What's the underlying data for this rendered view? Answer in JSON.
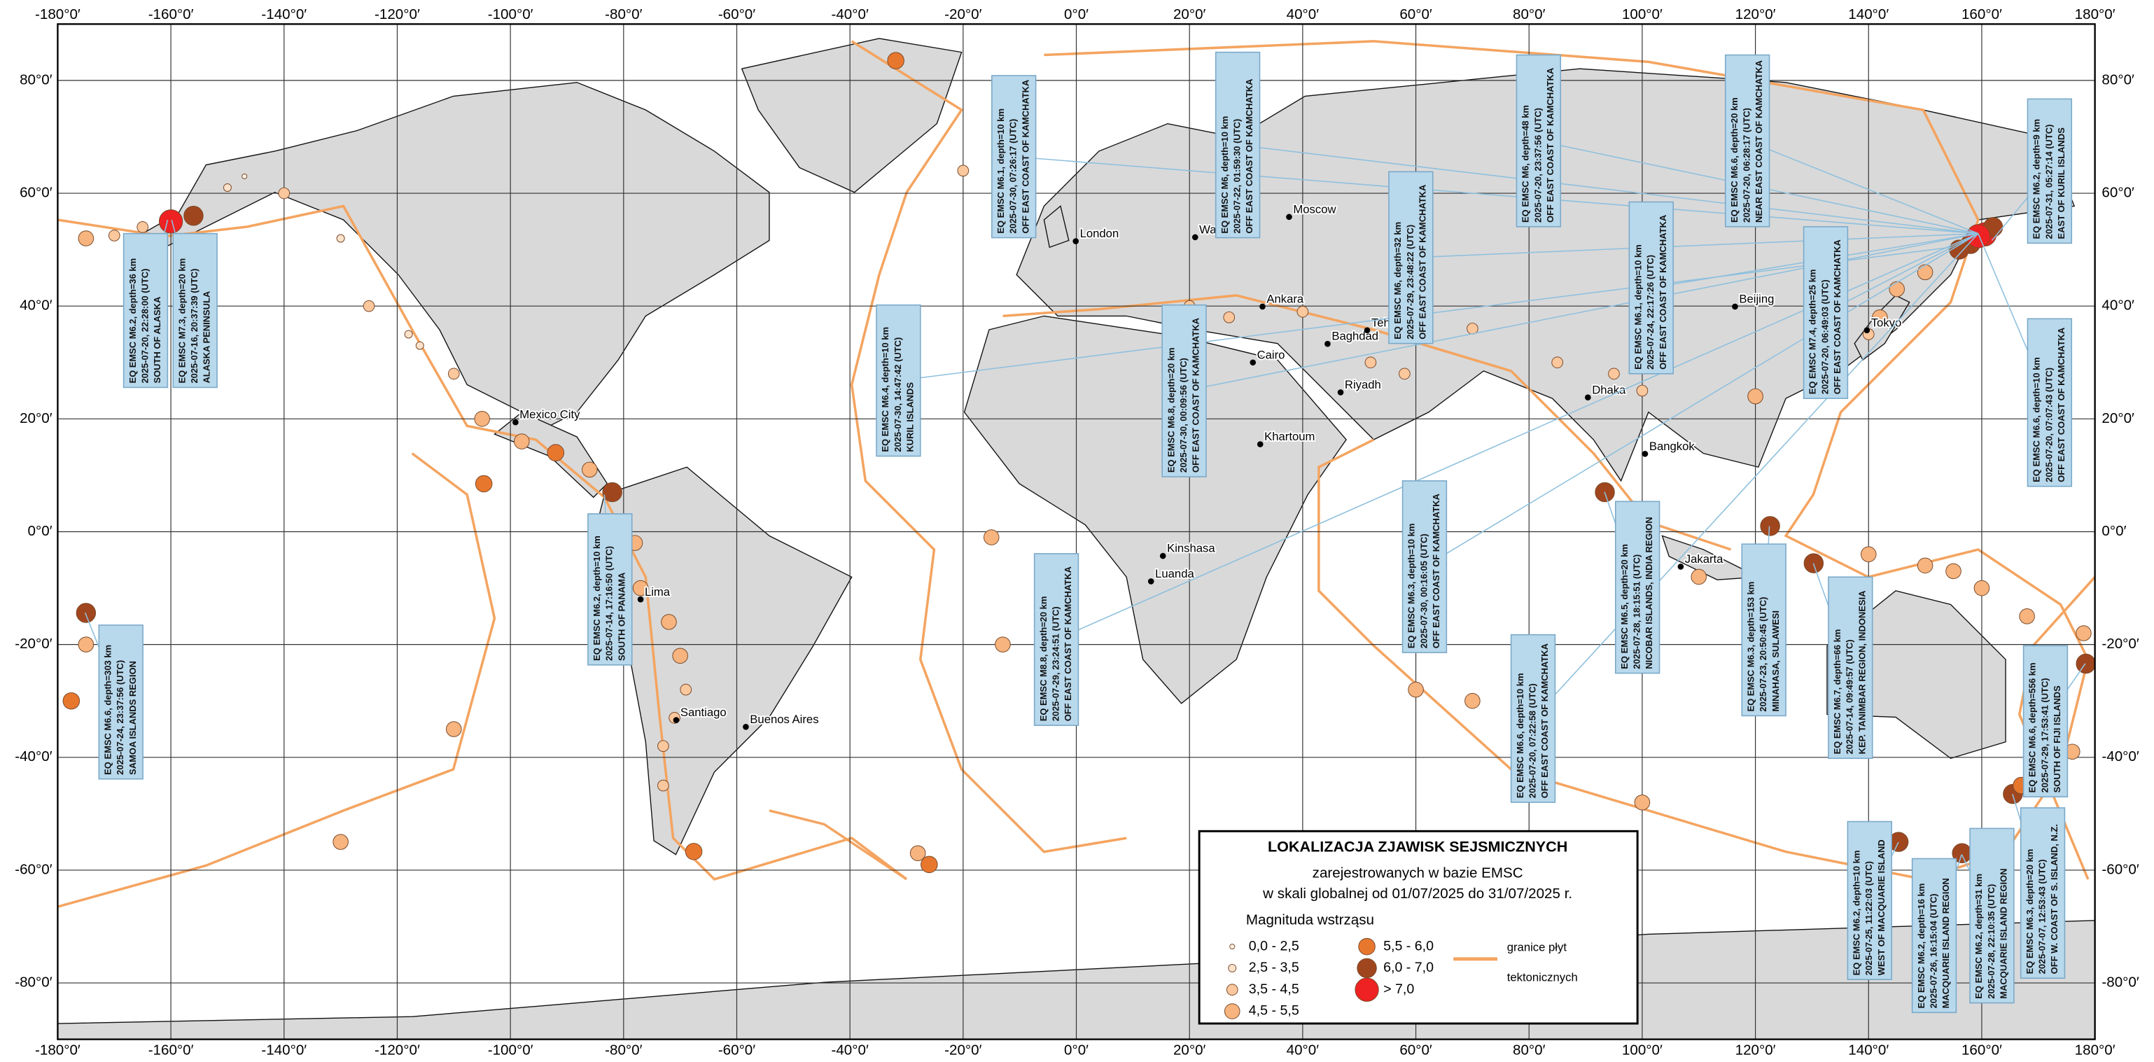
{
  "map": {
    "xticks": [
      {
        "value": -180,
        "label": "-180°0′"
      },
      {
        "value": -160,
        "label": "-160°0′"
      },
      {
        "value": -140,
        "label": "-140°0′"
      },
      {
        "value": -120,
        "label": "-120°0′"
      },
      {
        "value": -100,
        "label": "-100°0′"
      },
      {
        "value": -80,
        "label": "-80°0′"
      },
      {
        "value": -60,
        "label": "-60°0′"
      },
      {
        "value": -40,
        "label": "-40°0′"
      },
      {
        "value": -20,
        "label": "-20°0′"
      },
      {
        "value": 0,
        "label": "0°0′"
      },
      {
        "value": 20,
        "label": "20°0′"
      },
      {
        "value": 40,
        "label": "40°0′"
      },
      {
        "value": 60,
        "label": "60°0′"
      },
      {
        "value": 80,
        "label": "80°0′"
      },
      {
        "value": 100,
        "label": "100°0′"
      },
      {
        "value": 120,
        "label": "120°0′"
      },
      {
        "value": 140,
        "label": "140°0′"
      },
      {
        "value": 160,
        "label": "160°0′"
      },
      {
        "value": 180,
        "label": "180°0′"
      }
    ],
    "yticks": [
      {
        "value": 80,
        "label": "80°0′"
      },
      {
        "value": 60,
        "label": "60°0′"
      },
      {
        "value": 40,
        "label": "40°0′"
      },
      {
        "value": 20,
        "label": "20°0′"
      },
      {
        "value": 0,
        "label": "0°0′"
      },
      {
        "value": -20,
        "label": "-20°0′"
      },
      {
        "value": -40,
        "label": "-40°0′"
      },
      {
        "value": -60,
        "label": "-60°0′"
      },
      {
        "value": -80,
        "label": "-80°0′"
      }
    ]
  },
  "cities": [
    {
      "name": "Moscow",
      "lon": 37.6,
      "lat": 55.8
    },
    {
      "name": "Warsaw",
      "lon": 21,
      "lat": 52.2
    },
    {
      "name": "London",
      "lon": -0.1,
      "lat": 51.5
    },
    {
      "name": "Ankara",
      "lon": 32.9,
      "lat": 39.9
    },
    {
      "name": "Baghdad",
      "lon": 44.4,
      "lat": 33.3
    },
    {
      "name": "Tehran",
      "lon": 51.4,
      "lat": 35.7
    },
    {
      "name": "Cairo",
      "lon": 31.2,
      "lat": 30
    },
    {
      "name": "Riyadh",
      "lon": 46.7,
      "lat": 24.7
    },
    {
      "name": "Khartoum",
      "lon": 32.5,
      "lat": 15.5
    },
    {
      "name": "Kinshasa",
      "lon": 15.3,
      "lat": -4.3
    },
    {
      "name": "Luanda",
      "lon": 13.2,
      "lat": -8.8
    },
    {
      "name": "Beijing",
      "lon": 116.4,
      "lat": 39.9
    },
    {
      "name": "Tokyo",
      "lon": 139.7,
      "lat": 35.7
    },
    {
      "name": "Dhaka",
      "lon": 90.4,
      "lat": 23.8
    },
    {
      "name": "Bangkok",
      "lon": 100.5,
      "lat": 13.8
    },
    {
      "name": "Jakarta",
      "lon": 106.8,
      "lat": -6.2
    },
    {
      "name": "Mexico City",
      "lon": -99.1,
      "lat": 19.4
    },
    {
      "name": "Lima",
      "lon": -77,
      "lat": -12
    },
    {
      "name": "Santiago",
      "lon": -70.7,
      "lat": -33.4
    },
    {
      "name": "Buenos Aires",
      "lon": -58.4,
      "lat": -34.6
    }
  ],
  "callouts": [
    {
      "lines": [
        "EQ EMSC M6.2, depth=36 km",
        "2025-07-20, 22:28:00 (UTC)",
        "SOUTH OF ALASKA"
      ]
    },
    {
      "lines": [
        "EQ EMSC M7.3, depth=20 km",
        "2025-07-16, 20:37:39 (UTC)",
        "ALASKA PENINSULA"
      ]
    },
    {
      "lines": [
        "EQ EMSC M6.4, depth=10 km",
        "2025-07-30, 14:47:42 (UTC)",
        "KURIL ISLANDS"
      ]
    },
    {
      "lines": [
        "EQ EMSC M6.1, depth=10 km",
        "2025-07-30, 07:26:17 (UTC)",
        "OFF EAST COAST OF KAMCHATKA"
      ]
    },
    {
      "lines": [
        "EQ EMSC M6, depth=10 km",
        "2025-07-22, 01:59:30 (UTC)",
        "OFF EAST COAST OF KAMCHATKA"
      ]
    },
    {
      "lines": [
        "EQ EMSC M6.8, depth=20 km",
        "2025-07-30, 00:09:56 (UTC)",
        "OFF EAST COAST OF KAMCHATKA"
      ]
    },
    {
      "lines": [
        "EQ EMSC M6, depth=32 km",
        "2025-07-29, 23:48:22 (UTC)",
        "OFF EAST COAST OF KAMCHATKA"
      ]
    },
    {
      "lines": [
        "EQ EMSC M6, depth=48 km",
        "2025-07-20, 23:37:56 (UTC)",
        "OFF EAST COAST OF KAMCHATKA"
      ]
    },
    {
      "lines": [
        "EQ EMSC M6.1, depth=10 km",
        "2025-07-24, 22:17:26 (UTC)",
        "OFF EAST COAST OF KAMCHATKA"
      ]
    },
    {
      "lines": [
        "EQ EMSC M6.6, depth=20 km",
        "2025-07-20, 06:28:17 (UTC)",
        "NEAR EAST COAST OF KAMCHATKA"
      ]
    },
    {
      "lines": [
        "EQ EMSC M6.2, depth=9 km",
        "2025-07-31, 05:27:14 (UTC)",
        "EAST OF KURIL ISLANDS"
      ]
    },
    {
      "lines": [
        "EQ EMSC M7.4, depth=25 km",
        "2025-07-20, 06:49:03 (UTC)",
        "OFF EAST COAST OF KAMCHATKA"
      ]
    },
    {
      "lines": [
        "EQ EMSC M6.6, depth=10 km",
        "2025-07-20, 07:07:43 (UTC)",
        "OFF EAST COAST OF KAMCHATKA"
      ]
    },
    {
      "lines": [
        "EQ EMSC M6.2, depth=10 km",
        "2025-07-14, 17:16:50 (UTC)",
        "SOUTH OF PANAMA"
      ]
    },
    {
      "lines": [
        "EQ EMSC M8.8, depth=20 km",
        "2025-07-29, 23:24:51 (UTC)",
        "OFF EAST COAST OF KAMCHATKA"
      ]
    },
    {
      "lines": [
        "EQ EMSC M6.3, depth=10 km",
        "2025-07-30, 00:16:05 (UTC)",
        "OFF EAST COAST OF KAMCHATKA"
      ]
    },
    {
      "lines": [
        "EQ EMSC M6.6, depth=10 km",
        "2025-07-20, 07:22:58 (UTC)",
        "OFF EAST COAST OF KAMCHATKA"
      ]
    },
    {
      "lines": [
        "EQ EMSC M6.5, depth=20 km",
        "2025-07-28, 18:15:51 (UTC)",
        "NICOBAR ISLANDS, INDIA REGION"
      ]
    },
    {
      "lines": [
        "EQ EMSC M6.3, depth=153 km",
        "2025-07-23, 20:50:45 (UTC)",
        "MINAHASA, SULAWESI"
      ]
    },
    {
      "lines": [
        "EQ EMSC M6.7, depth=66 km",
        "2025-07-14, 09:49:57 (UTC)",
        "KEP. TANIMBAR REGION, INDONESIA"
      ]
    },
    {
      "lines": [
        "EQ EMSC M6.6, depth=303 km",
        "2025-07-24, 23:37:56 (UTC)",
        "SAMOA ISLANDS REGION"
      ]
    },
    {
      "lines": [
        "EQ EMSC M6.6, depth=556 km",
        "2025-07-29, 17:53:41 (UTC)",
        "SOUTH OF FIJI ISLANDS"
      ]
    },
    {
      "lines": [
        "EQ EMSC M6.2, depth=10 km",
        "2025-07-25, 11:22:03 (UTC)",
        "WEST OF MACQUARIE ISLAND"
      ]
    },
    {
      "lines": [
        "EQ EMSC M6.2, depth=16 km",
        "2025-07-26, 16:15:04 (UTC)",
        "MACQUARIE ISLAND REGION"
      ]
    },
    {
      "lines": [
        "EQ EMSC M6.2, depth=31 km",
        "2025-07-28, 22:10:35 (UTC)",
        "MACQUARIE ISLAND REGION"
      ]
    },
    {
      "lines": [
        "EQ EMSC M6.3, depth=20 km",
        "2025-07-07, 12:53:43 (UTC)",
        "OFF W. COAST OF S. ISLAND, N.Z."
      ]
    }
  ],
  "quakes": [
    {
      "lon": -175,
      "lat": 52,
      "mag": 4.8
    },
    {
      "lon": -170,
      "lat": 52.5,
      "mag": 4.2
    },
    {
      "lon": -165,
      "lat": 54,
      "mag": 3.8
    },
    {
      "lon": -160,
      "lat": 55,
      "mag": 7.3
    },
    {
      "lon": -156,
      "lat": 56,
      "mag": 6.2
    },
    {
      "lon": -150,
      "lat": 61,
      "mag": 3.2
    },
    {
      "lon": -147,
      "lat": 63,
      "mag": 2.4
    },
    {
      "lon": -140,
      "lat": 60,
      "mag": 3.5
    },
    {
      "lon": -130,
      "lat": 52,
      "mag": 3.2
    },
    {
      "lon": -125,
      "lat": 40,
      "mag": 3.6
    },
    {
      "lon": -118,
      "lat": 35,
      "mag": 2.8
    },
    {
      "lon": -116,
      "lat": 33,
      "mag": 3.0
    },
    {
      "lon": -110,
      "lat": 28,
      "mag": 3.8
    },
    {
      "lon": -105,
      "lat": 20,
      "mag": 4.6
    },
    {
      "lon": -98,
      "lat": 16,
      "mag": 4.8
    },
    {
      "lon": -92,
      "lat": 14,
      "mag": 5.8
    },
    {
      "lon": -86,
      "lat": 11,
      "mag": 5.0
    },
    {
      "lon": -82,
      "lat": 7,
      "mag": 6.2
    },
    {
      "lon": -104.7,
      "lat": 8.5,
      "mag": 5.7
    },
    {
      "lon": -78,
      "lat": -2,
      "mag": 4.8
    },
    {
      "lon": -77,
      "lat": -10,
      "mag": 4.6
    },
    {
      "lon": -72,
      "lat": -16,
      "mag": 4.8
    },
    {
      "lon": -70,
      "lat": -22,
      "mag": 4.6
    },
    {
      "lon": -69,
      "lat": -28,
      "mag": 4.2
    },
    {
      "lon": -71,
      "lat": -33,
      "mag": 4.0
    },
    {
      "lon": -73,
      "lat": -38,
      "mag": 4.4
    },
    {
      "lon": -73,
      "lat": -45,
      "mag": 3.8
    },
    {
      "lon": -67.6,
      "lat": -56.7,
      "mag": 5.8
    },
    {
      "lon": -26,
      "lat": -59,
      "mag": 5.8
    },
    {
      "lon": -28,
      "lat": -57,
      "mag": 4.8
    },
    {
      "lon": -31.9,
      "lat": 83.5,
      "mag": 5.7
    },
    {
      "lon": -15,
      "lat": -1,
      "mag": 4.6
    },
    {
      "lon": -13,
      "lat": -20,
      "mag": 4.6
    },
    {
      "lon": -20,
      "lat": 64,
      "mag": 3.8
    },
    {
      "lon": 20,
      "lat": 40,
      "mag": 3.5
    },
    {
      "lon": 27,
      "lat": 38,
      "mag": 3.8
    },
    {
      "lon": 40,
      "lat": 39,
      "mag": 3.8
    },
    {
      "lon": 52,
      "lat": 30,
      "mag": 4.2
    },
    {
      "lon": 58,
      "lat": 28,
      "mag": 4.0
    },
    {
      "lon": 70,
      "lat": 36,
      "mag": 4.4
    },
    {
      "lon": 85,
      "lat": 30,
      "mag": 4.2
    },
    {
      "lon": 95,
      "lat": 28,
      "mag": 4.4
    },
    {
      "lon": 100,
      "lat": 25,
      "mag": 4.0
    },
    {
      "lon": 120,
      "lat": 24,
      "mag": 4.6
    },
    {
      "lon": 122.6,
      "lat": 1,
      "mag": 6.3
    },
    {
      "lon": 130.3,
      "lat": -5.6,
      "mag": 6.7
    },
    {
      "lon": 93.4,
      "lat": 7,
      "mag": 6.5
    },
    {
      "lon": 110,
      "lat": -8,
      "mag": 4.8
    },
    {
      "lon": 120,
      "lat": -9,
      "mag": 5.0
    },
    {
      "lon": 140,
      "lat": -4,
      "mag": 5.0
    },
    {
      "lon": 150,
      "lat": -6,
      "mag": 5.2
    },
    {
      "lon": 155,
      "lat": -7,
      "mag": 5.3
    },
    {
      "lon": 160,
      "lat": -10,
      "mag": 5.0
    },
    {
      "lon": 168,
      "lat": -15,
      "mag": 4.8
    },
    {
      "lon": 178,
      "lat": -18,
      "mag": 5.0
    },
    {
      "lon": 178.4,
      "lat": -23.4,
      "mag": 6.6
    },
    {
      "lon": -175,
      "lat": -14.4,
      "mag": 6.6
    },
    {
      "lon": -177.6,
      "lat": -30,
      "mag": 5.8
    },
    {
      "lon": -175,
      "lat": -20,
      "mag": 4.8
    },
    {
      "lon": 142,
      "lat": 38,
      "mag": 4.8
    },
    {
      "lon": 140,
      "lat": 35,
      "mag": 4.0
    },
    {
      "lon": 145,
      "lat": 43,
      "mag": 5.0
    },
    {
      "lon": 150,
      "lat": 46,
      "mag": 5.2
    },
    {
      "lon": 156,
      "lat": 50,
      "mag": 6.2
    },
    {
      "lon": 159.4,
      "lat": 52.4,
      "mag": 8.8
    },
    {
      "lon": 162,
      "lat": 54,
      "mag": 6.6
    },
    {
      "lon": 158,
      "lat": 51,
      "mag": 6.0
    },
    {
      "lon": 160.5,
      "lat": 52.7,
      "mag": 7.4
    },
    {
      "lon": 176,
      "lat": -39,
      "mag": 4.6
    },
    {
      "lon": 167,
      "lat": -45,
      "mag": 5.5
    },
    {
      "lon": 165.5,
      "lat": -46.5,
      "mag": 6.3
    },
    {
      "lon": 156.5,
      "lat": -57,
      "mag": 6.2
    },
    {
      "lon": 145.3,
      "lat": -55,
      "mag": 6.2
    },
    {
      "lon": 70,
      "lat": -30,
      "mag": 4.6
    },
    {
      "lon": 60,
      "lat": -28,
      "mag": 4.8
    },
    {
      "lon": 100,
      "lat": -48,
      "mag": 4.6
    },
    {
      "lon": -110,
      "lat": -35,
      "mag": 4.6
    },
    {
      "lon": -130,
      "lat": -55,
      "mag": 4.6
    }
  ],
  "legend": {
    "title": "LOKALIZACJA ZJAWISK SEJSMICZNYCH",
    "subtitle": "zarejestrowanych w bazie EMSC",
    "period": "w skali globalnej od 01/07/2025 do 31/07/2025 r.",
    "magnitude_title": "Magnituda wstrząsu",
    "classes": [
      {
        "label": "0,0 - 2,5",
        "min": 0,
        "max": 2.5,
        "color": "#fff3e8"
      },
      {
        "label": "2,5 - 3,5",
        "min": 2.5,
        "max": 3.5,
        "color": "#fde2cb"
      },
      {
        "label": "3,5 - 4,5",
        "min": 3.5,
        "max": 4.5,
        "color": "#fbc79d"
      },
      {
        "label": "4,5 - 5,5",
        "min": 4.5,
        "max": 5.5,
        "color": "#f7b47e"
      },
      {
        "label": "5,5 - 6,0",
        "min": 5.5,
        "max": 6,
        "color": "#e8772e"
      },
      {
        "label": "6,0 - 7,0",
        "min": 6,
        "max": 7,
        "color": "#a0461e"
      },
      {
        "label": "> 7,0",
        "min": 7,
        "color": "#ee2222"
      }
    ],
    "plates_label": [
      "granice płyt",
      "tektonicznych"
    ],
    "plates_color": "#f4a460"
  }
}
